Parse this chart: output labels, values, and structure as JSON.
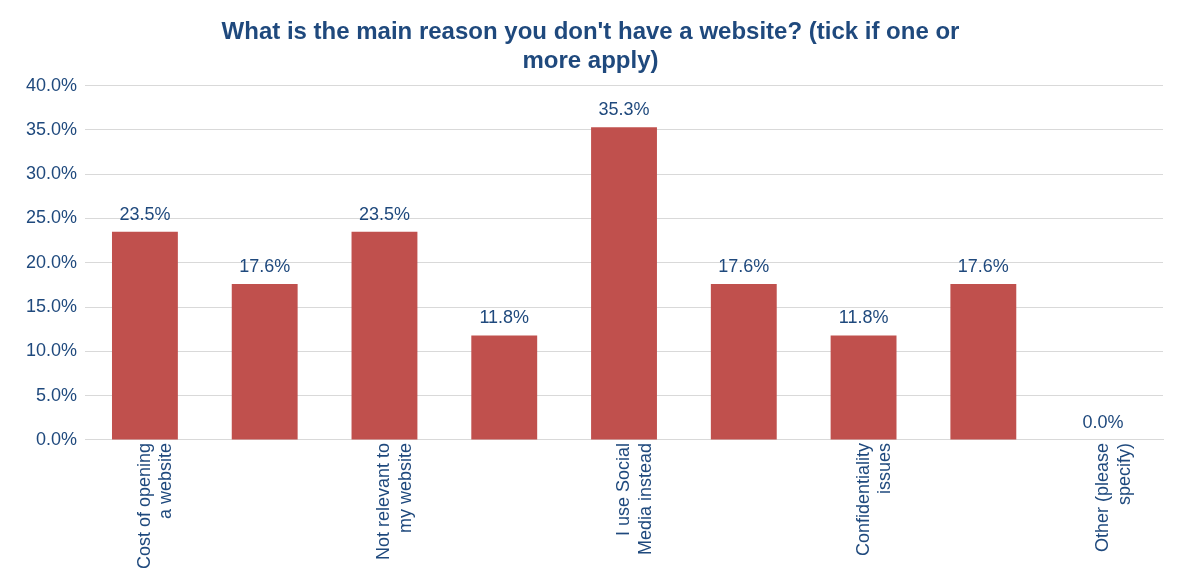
{
  "chart_data": {
    "type": "bar",
    "title": "What is the main reason you don't have a website? (tick if one or more apply)",
    "categories": [
      "Cost of opening a website",
      null,
      "Not relevant to my website",
      null,
      "I use Social Media instead",
      null,
      "Confidentiality issues",
      null,
      "Other (please specify)"
    ],
    "values": [
      23.5,
      17.6,
      23.5,
      11.8,
      35.3,
      17.6,
      11.8,
      17.6,
      0.0
    ],
    "value_labels": [
      "23.5%",
      "17.6%",
      "23.5%",
      "11.8%",
      "35.3%",
      "17.6%",
      "11.8%",
      "17.6%",
      "0.0%"
    ],
    "color": "#c0504d",
    "ylim": [
      0,
      40
    ],
    "yticks": [
      {
        "value": 0,
        "label": "0.0%"
      },
      {
        "value": 5,
        "label": "5.0%"
      },
      {
        "value": 10,
        "label": "10.0%"
      },
      {
        "value": 15,
        "label": "15.0%"
      },
      {
        "value": 20,
        "label": "20.0%"
      },
      {
        "value": 25,
        "label": "25.0%"
      },
      {
        "value": 30,
        "label": "30.0%"
      },
      {
        "value": 35,
        "label": "35.0%"
      },
      {
        "value": 40,
        "label": "40.0%"
      }
    ],
    "grid": "y",
    "legend": false
  }
}
